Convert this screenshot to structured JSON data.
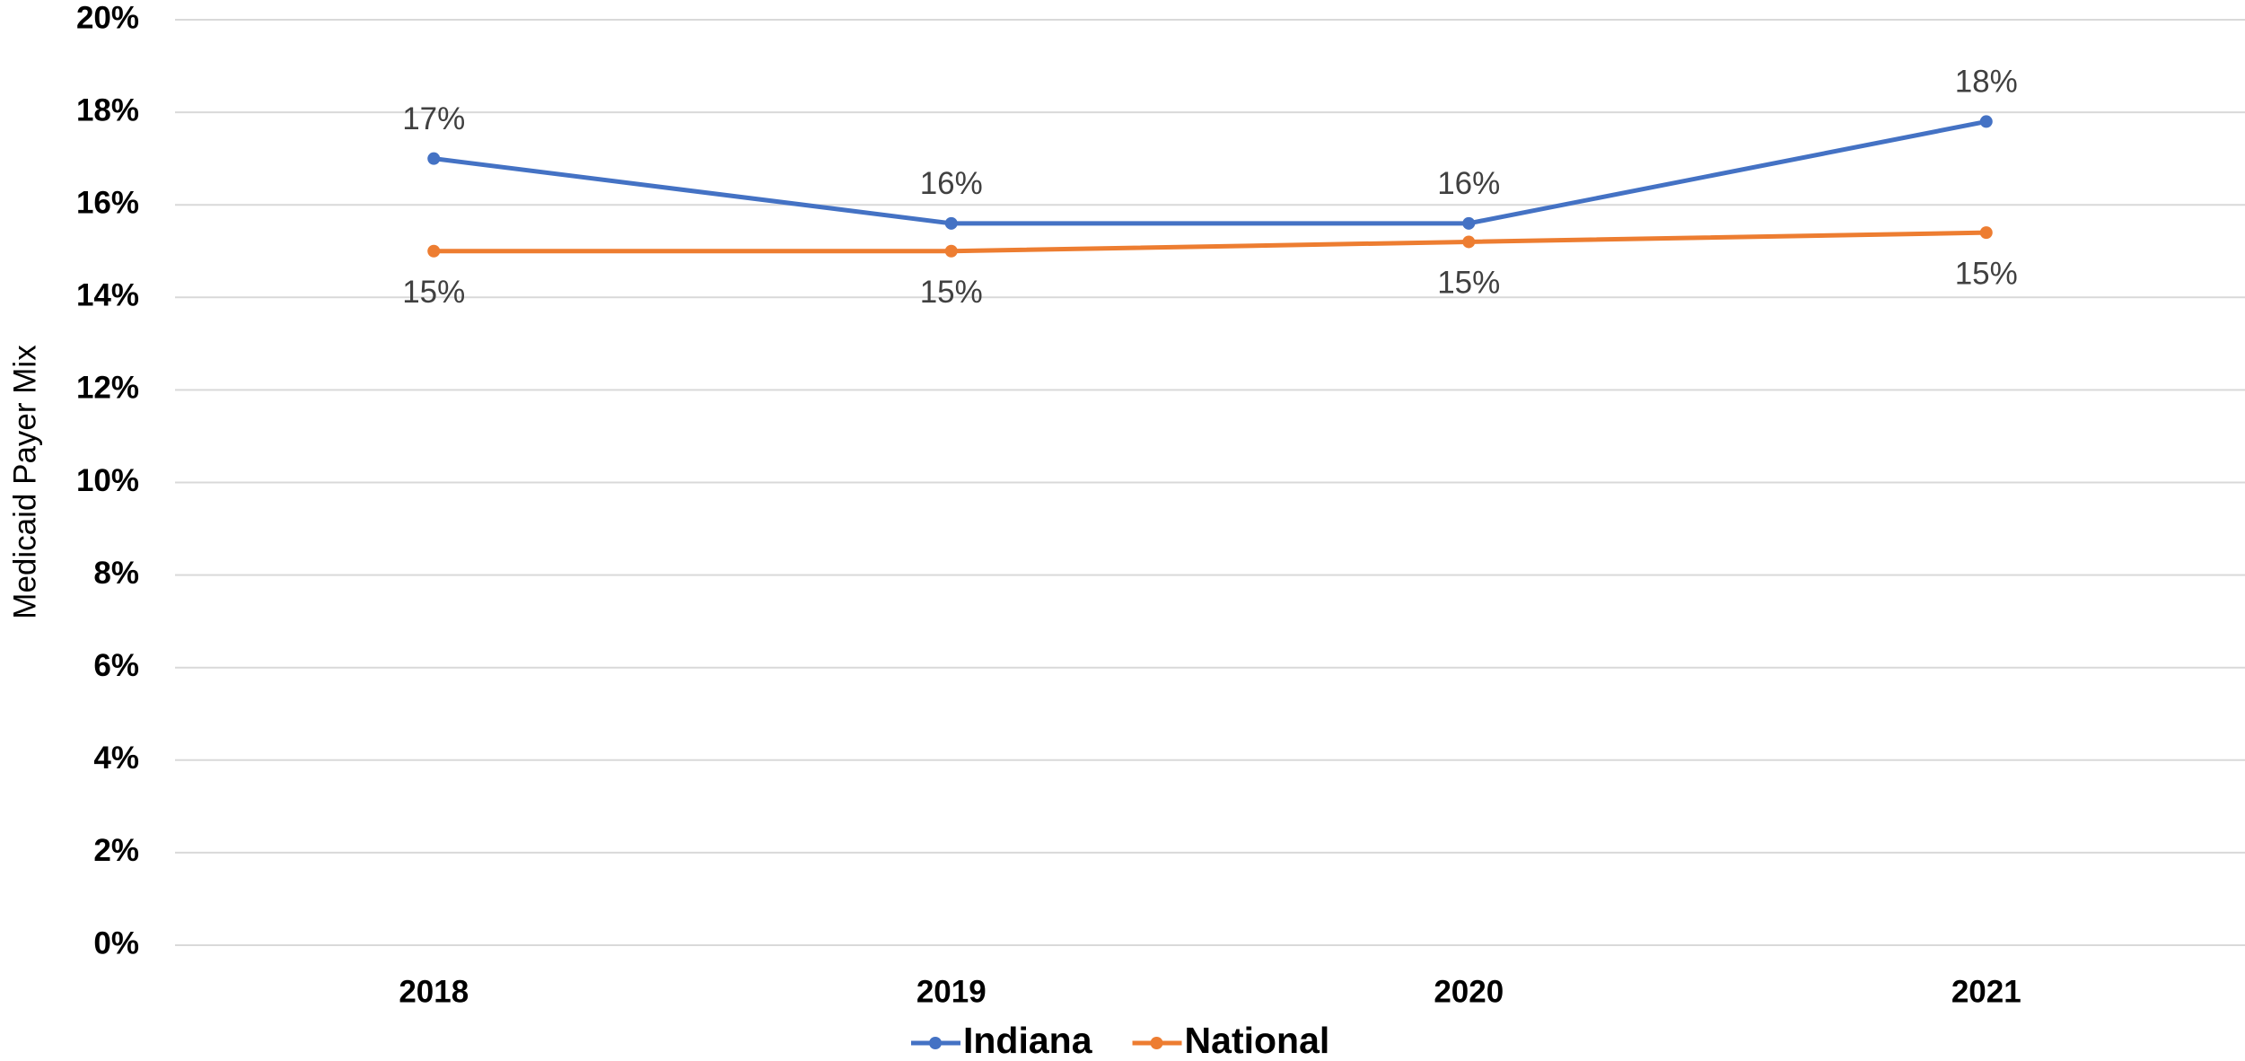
{
  "chart_data": {
    "type": "line",
    "y_label": "Medicaid Payer Mix",
    "categories": [
      "2018",
      "2019",
      "2020",
      "2021"
    ],
    "series": [
      {
        "name": "Indiana",
        "color": "#4472c4",
        "values": [
          17.0,
          15.6,
          15.6,
          17.8
        ],
        "value_labels": [
          "17%",
          "16%",
          "16%",
          "18%"
        ]
      },
      {
        "name": "National",
        "color": "#ed7d31",
        "values": [
          15.0,
          15.0,
          15.2,
          15.4
        ],
        "value_labels": [
          "15%",
          "15%",
          "15%",
          "15%"
        ]
      }
    ],
    "ylim": [
      0,
      20
    ],
    "yticks": [
      {
        "value": 0,
        "label": "0%"
      },
      {
        "value": 2,
        "label": "2%"
      },
      {
        "value": 4,
        "label": "4%"
      },
      {
        "value": 6,
        "label": "6%"
      },
      {
        "value": 8,
        "label": "8%"
      },
      {
        "value": 10,
        "label": "10%"
      },
      {
        "value": 12,
        "label": "12%"
      },
      {
        "value": 14,
        "label": "14%"
      },
      {
        "value": 16,
        "label": "16%"
      },
      {
        "value": 18,
        "label": "18%"
      },
      {
        "value": 20,
        "label": "20%"
      }
    ],
    "grid": true,
    "legend": "bottom"
  }
}
